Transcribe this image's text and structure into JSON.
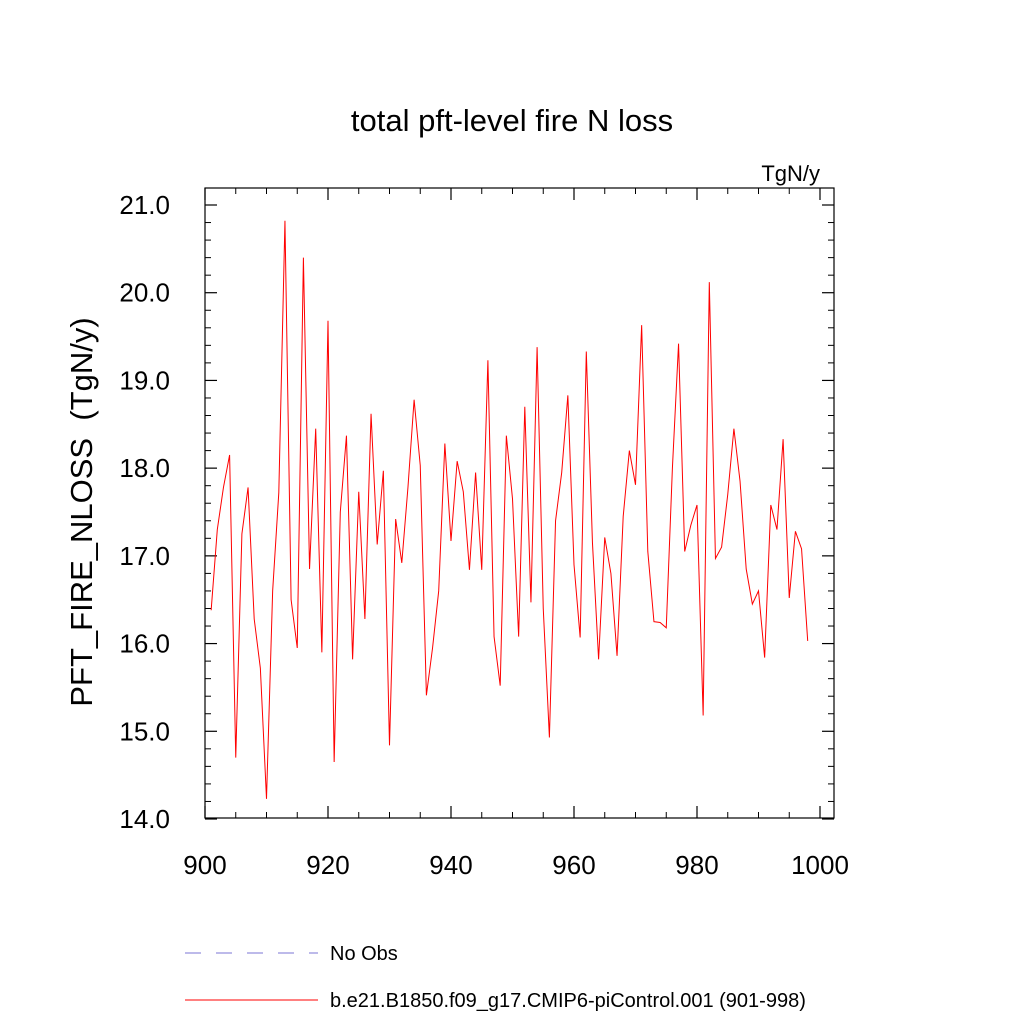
{
  "chart_data": {
    "type": "line",
    "title": "total pft-level fire N loss",
    "units_label": "TgN/y",
    "xlabel": "",
    "ylabel": "PFT_FIRE_NLOSS  (TgN/y)",
    "xlim": [
      900,
      1000
    ],
    "ylim": [
      14.0,
      21.0
    ],
    "x_ticks": [
      900,
      920,
      940,
      960,
      980,
      1000
    ],
    "x_tick_labels": [
      "900",
      "920",
      "940",
      "960",
      "980",
      "1000"
    ],
    "y_ticks": [
      14,
      15,
      16,
      17,
      18,
      19,
      20,
      21
    ],
    "y_tick_labels": [
      "14.0",
      "15.0",
      "16.0",
      "17.0",
      "18.0",
      "19.0",
      "20.0",
      "21.0"
    ],
    "grid": false,
    "legend_position": "bottom",
    "series": [
      {
        "name": "No Obs",
        "color": "#7b74d4",
        "dashed": true,
        "x": [],
        "values": []
      },
      {
        "name": "b.e21.B1850.f09_g17.CMIP6-piControl.001 (901-998)",
        "color": "#ff0000",
        "dashed": false,
        "x": [
          901,
          902,
          903,
          904,
          905,
          906,
          907,
          908,
          909,
          910,
          911,
          912,
          913,
          914,
          915,
          916,
          917,
          918,
          919,
          920,
          921,
          922,
          923,
          924,
          925,
          926,
          927,
          928,
          929,
          930,
          931,
          932,
          933,
          934,
          935,
          936,
          937,
          938,
          939,
          940,
          941,
          942,
          943,
          944,
          945,
          946,
          947,
          948,
          949,
          950,
          951,
          952,
          953,
          954,
          955,
          956,
          957,
          958,
          959,
          960,
          961,
          962,
          963,
          964,
          965,
          966,
          967,
          968,
          969,
          970,
          971,
          972,
          973,
          974,
          975,
          976,
          977,
          978,
          979,
          980,
          981,
          982,
          983,
          984,
          985,
          986,
          987,
          988,
          989,
          990,
          991,
          992,
          993,
          994,
          995,
          996,
          997,
          998
        ],
        "values": [
          16.38,
          17.3,
          17.78,
          18.15,
          14.7,
          17.25,
          17.78,
          16.28,
          15.72,
          14.23,
          16.6,
          17.72,
          20.82,
          16.5,
          15.95,
          20.4,
          16.85,
          18.45,
          15.9,
          19.68,
          14.65,
          17.5,
          18.37,
          15.82,
          17.73,
          16.28,
          18.62,
          17.13,
          17.97,
          14.84,
          17.42,
          16.92,
          17.78,
          18.78,
          18.03,
          15.41,
          15.95,
          16.6,
          18.28,
          17.17,
          18.08,
          17.73,
          16.84,
          17.95,
          16.84,
          19.23,
          16.08,
          15.52,
          18.37,
          17.65,
          16.08,
          18.7,
          16.47,
          19.38,
          16.4,
          14.93,
          17.4,
          17.95,
          18.83,
          16.9,
          16.07,
          19.33,
          17.15,
          15.82,
          17.21,
          16.8,
          15.86,
          17.45,
          18.2,
          17.81,
          19.63,
          17.05,
          16.25,
          16.24,
          16.18,
          18.0,
          19.42,
          17.05,
          17.35,
          17.58,
          15.18,
          20.12,
          16.97,
          17.1,
          17.7,
          18.45,
          17.85,
          16.85,
          16.45,
          16.6,
          15.84,
          17.58,
          17.3,
          18.33,
          16.52,
          17.28,
          17.08,
          16.03
        ]
      }
    ]
  }
}
